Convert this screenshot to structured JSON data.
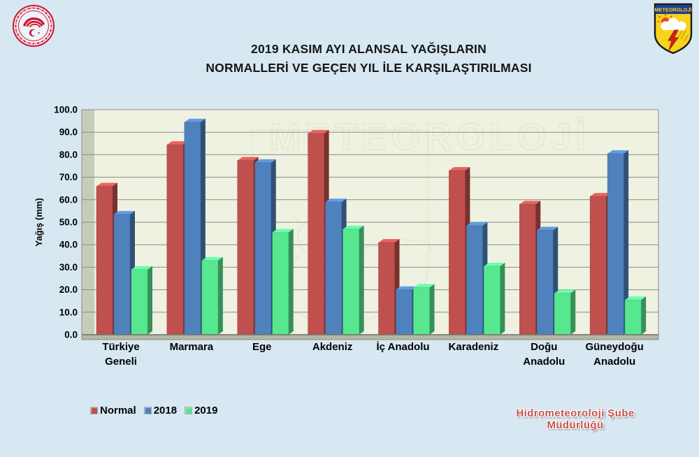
{
  "header": {
    "title_line1": "2019 KASIM AYI ALANSAL YAĞIŞLARIN",
    "title_line2": "NORMALLERİ VE GEÇEN YIL İLE KARŞILAŞTIRILMASI",
    "meteorology_logo_text": "METEOROLOJİ"
  },
  "chart_data": {
    "type": "bar",
    "title": "2019 KASIM AYI ALANSAL YAĞIŞLARIN NORMALLERİ VE GEÇEN YIL İLE KARŞILAŞTIRILMASI",
    "xlabel": "",
    "ylabel": "Yağış (mm)",
    "ylim": [
      0,
      100
    ],
    "ytick_labels": [
      "0.0",
      "10.0",
      "20.0",
      "30.0",
      "40.0",
      "50.0",
      "60.0",
      "70.0",
      "80.0",
      "90.0",
      "100.0"
    ],
    "grid": true,
    "legend_position": "bottom-left",
    "watermark_text": "METEOROLOJİ",
    "categories": [
      "Türkiye Geneli",
      "Marmara",
      "Ege",
      "Akdeniz",
      "İç Anadolu",
      "Karadeniz",
      "Doğu Anadolu",
      "Güneydoğu Anadolu"
    ],
    "series": [
      {
        "name": "Normal",
        "color": "#c0504d",
        "values": [
          67.5,
          86.0,
          79.0,
          91.0,
          42.5,
          74.5,
          59.5,
          63.0
        ]
      },
      {
        "name": "2018",
        "color": "#4f81bd",
        "values": [
          55.0,
          96.0,
          78.0,
          60.5,
          21.5,
          50.0,
          48.0,
          82.0
        ]
      },
      {
        "name": "2019",
        "color": "#57e88f",
        "values": [
          30.5,
          34.5,
          47.0,
          48.5,
          22.5,
          32.0,
          20.0,
          17.0
        ]
      }
    ]
  },
  "footer": {
    "credit": "Hidrometeoroloji Şube Müdürlüğü"
  },
  "colors": {
    "page_bg": "#d7e8f2",
    "plot_bg": "#eff2e1",
    "wall": "#c7ccba",
    "floor": "#b3b8a6",
    "gridline": "#8b8b82",
    "axis_line": "#6f6f68",
    "watermark_stroke": "#ddd8ba",
    "credit_text": "#c5534f",
    "title_text": "#161616"
  }
}
